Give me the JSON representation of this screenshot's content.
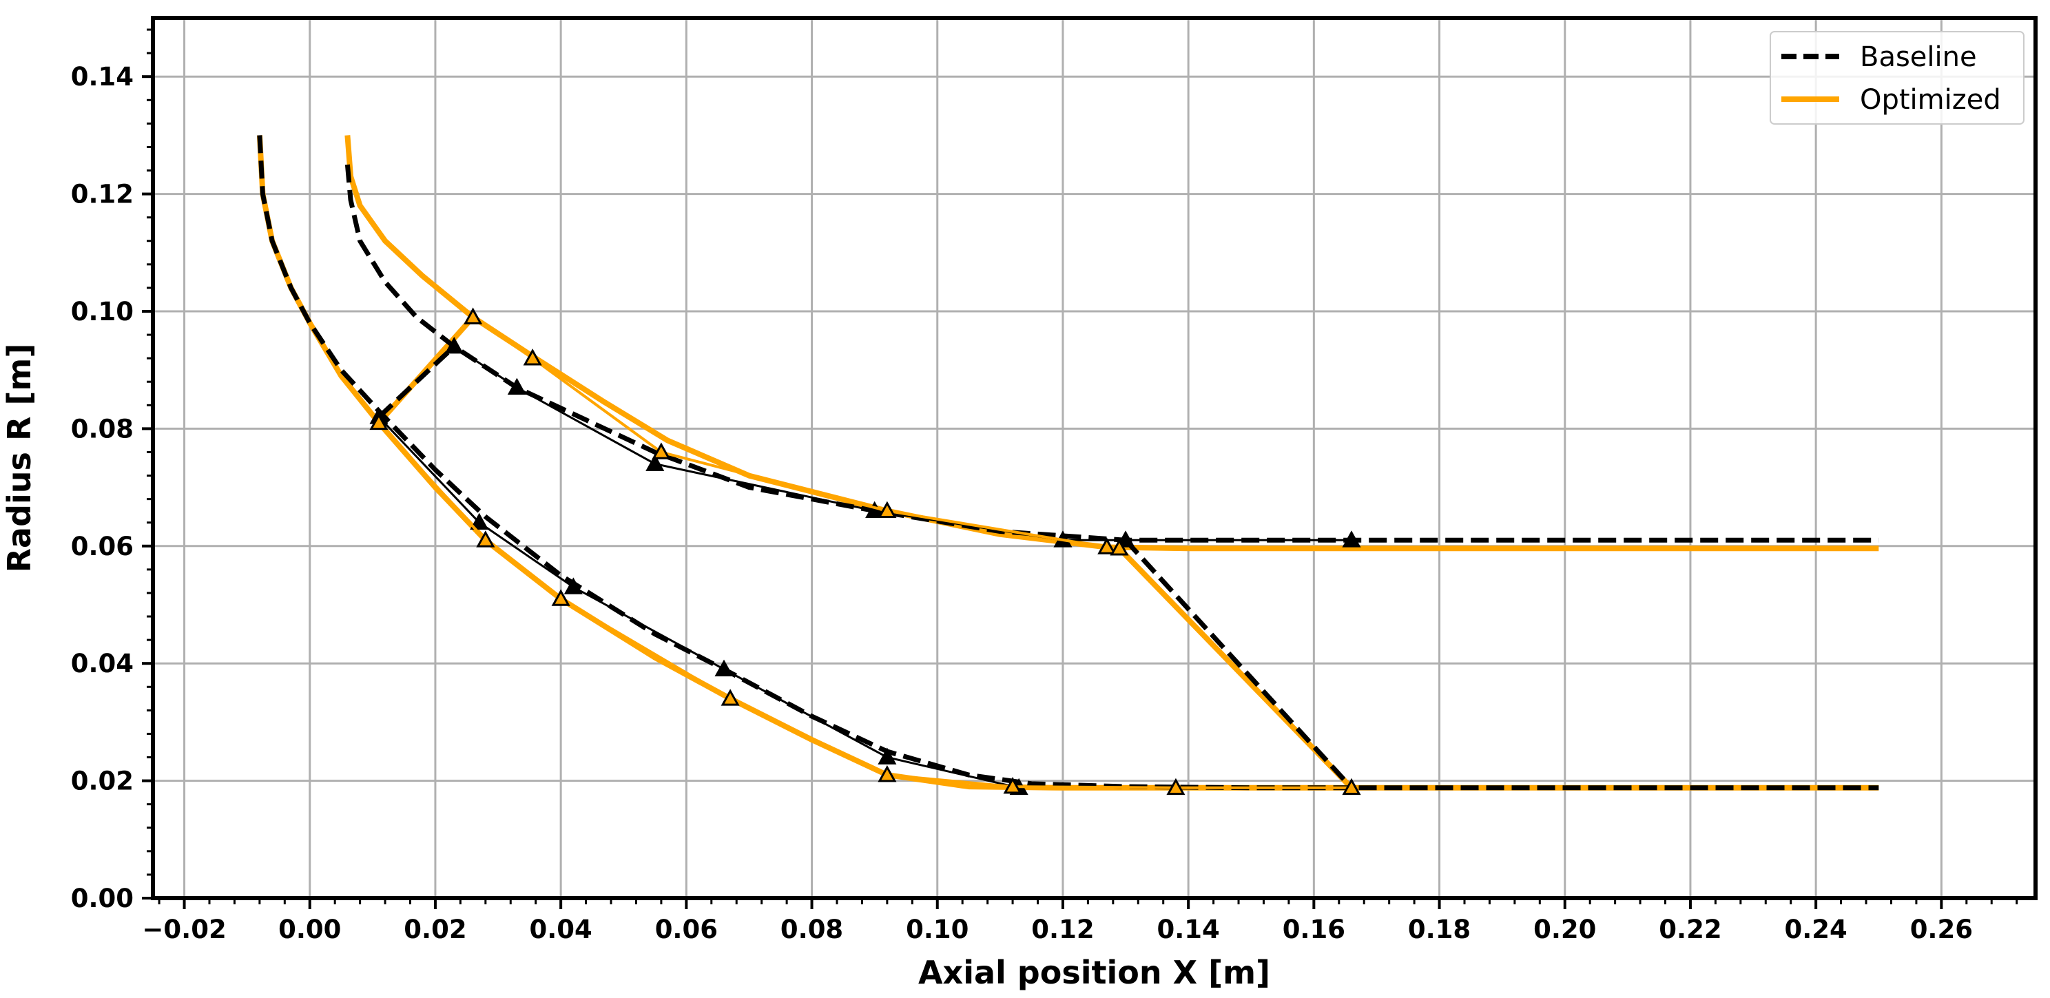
{
  "chart_data": {
    "type": "line",
    "title": "",
    "xlabel": "Axial position X [m]",
    "ylabel": "Radius R [m]",
    "xlim": [
      -0.025,
      0.275
    ],
    "ylim": [
      0.0,
      0.15
    ],
    "grid": true,
    "legend_position": "top-right",
    "x_ticks": [
      "−0.02",
      "0.00",
      "0.02",
      "0.04",
      "0.06",
      "0.08",
      "0.10",
      "0.12",
      "0.14",
      "0.16",
      "0.18",
      "0.20",
      "0.22",
      "0.24",
      "0.26"
    ],
    "x_tick_values": [
      -0.02,
      0,
      0.02,
      0.04,
      0.06,
      0.08,
      0.1,
      0.12,
      0.14,
      0.16,
      0.18,
      0.2,
      0.22,
      0.24,
      0.26
    ],
    "y_ticks": [
      "0.00",
      "0.02",
      "0.04",
      "0.06",
      "0.08",
      "0.10",
      "0.12",
      "0.14"
    ],
    "y_tick_values": [
      0,
      0.02,
      0.04,
      0.06,
      0.08,
      0.1,
      0.12,
      0.14
    ],
    "colors": {
      "baseline": "#000000",
      "optimized": "#FFA500"
    },
    "legend": [
      {
        "label": "Baseline",
        "style": "dashed",
        "color": "#000000"
      },
      {
        "label": "Optimized",
        "style": "solid",
        "color": "#FFA500"
      }
    ],
    "series": [
      {
        "name": "Baseline",
        "role": "hub",
        "style": "dashed",
        "color": "#000000",
        "x": [
          -0.008,
          -0.0075,
          -0.006,
          -0.003,
          0.0,
          0.005,
          0.011,
          0.02,
          0.028,
          0.04,
          0.055,
          0.066,
          0.08,
          0.092,
          0.105,
          0.115,
          0.13,
          0.15,
          0.17,
          0.2,
          0.25
        ],
        "y": [
          0.13,
          0.12,
          0.112,
          0.104,
          0.098,
          0.09,
          0.083,
          0.073,
          0.065,
          0.055,
          0.045,
          0.039,
          0.031,
          0.025,
          0.021,
          0.0195,
          0.019,
          0.0188,
          0.0188,
          0.0188,
          0.0188
        ]
      },
      {
        "name": "Baseline",
        "role": "shroud",
        "style": "dashed",
        "color": "#000000",
        "x": [
          0.006,
          0.0065,
          0.008,
          0.012,
          0.017,
          0.023,
          0.033,
          0.045,
          0.055,
          0.07,
          0.09,
          0.11,
          0.13,
          0.16,
          0.2,
          0.25
        ],
        "y": [
          0.125,
          0.119,
          0.112,
          0.105,
          0.099,
          0.094,
          0.087,
          0.081,
          0.076,
          0.07,
          0.066,
          0.0625,
          0.061,
          0.061,
          0.061,
          0.061
        ]
      },
      {
        "name": "Baseline",
        "role": "leading-edge",
        "style": "dashed",
        "color": "#000000",
        "x": [
          0.011,
          0.023
        ],
        "y": [
          0.082,
          0.094
        ]
      },
      {
        "name": "Baseline",
        "role": "trailing-edge",
        "style": "dashed",
        "color": "#000000",
        "x": [
          0.13,
          0.166
        ],
        "y": [
          0.061,
          0.0188
        ]
      },
      {
        "name": "Optimized",
        "role": "hub",
        "style": "solid",
        "color": "#FFA500",
        "x": [
          -0.008,
          -0.0075,
          -0.006,
          -0.003,
          0.0,
          0.005,
          0.011,
          0.02,
          0.028,
          0.04,
          0.055,
          0.067,
          0.08,
          0.092,
          0.105,
          0.12,
          0.14,
          0.17,
          0.2,
          0.25
        ],
        "y": [
          0.13,
          0.12,
          0.112,
          0.104,
          0.098,
          0.089,
          0.081,
          0.07,
          0.061,
          0.051,
          0.041,
          0.034,
          0.027,
          0.021,
          0.019,
          0.0188,
          0.0188,
          0.0188,
          0.0188,
          0.0188
        ]
      },
      {
        "name": "Optimized",
        "role": "shroud",
        "style": "solid",
        "color": "#FFA500",
        "x": [
          0.006,
          0.0065,
          0.008,
          0.012,
          0.018,
          0.026,
          0.036,
          0.047,
          0.057,
          0.07,
          0.092,
          0.11,
          0.127,
          0.14,
          0.17,
          0.2,
          0.25
        ],
        "y": [
          0.13,
          0.123,
          0.118,
          0.112,
          0.106,
          0.099,
          0.092,
          0.0845,
          0.078,
          0.072,
          0.066,
          0.062,
          0.0598,
          0.0596,
          0.0596,
          0.0596,
          0.0596
        ]
      },
      {
        "name": "Optimized",
        "role": "leading-edge",
        "style": "solid",
        "color": "#FFA500",
        "x": [
          0.011,
          0.026
        ],
        "y": [
          0.081,
          0.099
        ]
      },
      {
        "name": "Optimized",
        "role": "trailing-edge",
        "style": "solid",
        "color": "#FFA500",
        "x": [
          0.129,
          0.166
        ],
        "y": [
          0.0596,
          0.0188
        ]
      }
    ],
    "control_polygons": [
      {
        "name": "Baseline",
        "marker": "filled-triangle",
        "color": "#000000",
        "polylines": [
          {
            "x": [
              0.011,
              0.027,
              0.042,
              0.066,
              0.092,
              0.113
            ],
            "y": [
              0.082,
              0.064,
              0.053,
              0.039,
              0.024,
              0.0188
            ]
          },
          {
            "x": [
              0.023,
              0.033,
              0.055,
              0.09,
              0.12,
              0.13,
              0.166
            ],
            "y": [
              0.094,
              0.087,
              0.074,
              0.066,
              0.061,
              0.061,
              0.061
            ]
          }
        ]
      },
      {
        "name": "Optimized",
        "marker": "hollow-triangle",
        "color": "#FFA500",
        "polylines": [
          {
            "x": [
              0.011,
              0.028,
              0.04,
              0.067,
              0.092,
              0.112,
              0.138,
              0.166
            ],
            "y": [
              0.081,
              0.061,
              0.051,
              0.034,
              0.021,
              0.019,
              0.0188,
              0.0188
            ]
          },
          {
            "x": [
              0.026,
              0.0355,
              0.056,
              0.092,
              0.127,
              0.129
            ],
            "y": [
              0.099,
              0.092,
              0.076,
              0.066,
              0.0598,
              0.0596
            ]
          }
        ]
      }
    ]
  }
}
